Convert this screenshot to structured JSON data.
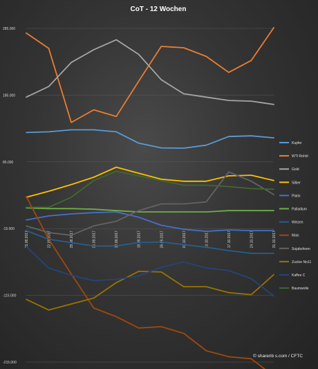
{
  "chart_data": {
    "type": "line",
    "title": "CoT - 12 Wochen",
    "xlabel": "",
    "ylabel": "",
    "ylim": [
      -215000,
      285000
    ],
    "yticks": [
      285000,
      185000,
      85000,
      -15000,
      -115000,
      -215000
    ],
    "ytick_labels": [
      "285.000",
      "185.000",
      "85.000",
      "-15.000",
      "-115.000",
      "-215.000"
    ],
    "categories": [
      "15.08.2017",
      "22.08.2017",
      "29.08.2017",
      "05.09.2017",
      "12.09.2017",
      "19.09.2017",
      "26.09.2017",
      "03.10.2017",
      "10.10.2017",
      "17.10.2017",
      "24.10.2017",
      "31.10.2017"
    ],
    "grid": true,
    "legend": "right",
    "series": [
      {
        "name": "Kupfer",
        "color": "#5b9bd5",
        "values": [
          129000,
          130000,
          133000,
          133000,
          130000,
          113000,
          106000,
          105500,
          110000,
          123000,
          124000,
          121000
        ]
      },
      {
        "name": "WTI Rohöl",
        "color": "#ed7d31",
        "values": [
          278000,
          255000,
          144000,
          163000,
          153000,
          206000,
          258000,
          256000,
          243000,
          219000,
          237000,
          286000
        ]
      },
      {
        "name": "Gold",
        "color": "#a5a5a5",
        "values": [
          182000,
          198000,
          234000,
          253000,
          268000,
          246000,
          208000,
          187000,
          182000,
          177000,
          176000,
          171000
        ]
      },
      {
        "name": "Silber",
        "color": "#ffc000",
        "values": [
          32000,
          41000,
          51000,
          62000,
          77000,
          68000,
          59000,
          56000,
          56000,
          64000,
          65000,
          57000
        ]
      },
      {
        "name": "Platin",
        "color": "#4472c4",
        "values": [
          -2000,
          4000,
          7000,
          9000,
          10000,
          2000,
          -10000,
          -16000,
          -19000,
          -17000,
          -18000,
          -18000
        ]
      },
      {
        "name": "Palladium",
        "color": "#70ad47",
        "values": [
          16000,
          15000,
          15000,
          14000,
          12000,
          10000,
          10000,
          10000,
          10000,
          12000,
          12000,
          12000
        ]
      },
      {
        "name": "Weizen",
        "color": "#255e91",
        "values": [
          -18000,
          -31000,
          -36000,
          -41000,
          -41000,
          -36000,
          -35000,
          -39000,
          -43000,
          -48000,
          -52000,
          -52000
        ]
      },
      {
        "name": "Mais",
        "color": "#9e480e",
        "values": [
          33000,
          -31000,
          -83000,
          -134000,
          -147000,
          -164000,
          -162000,
          -172000,
          -198000,
          -207000,
          -210000,
          -236000
        ]
      },
      {
        "name": "Sojabohnen",
        "color": "#636363",
        "values": [
          -11000,
          -21000,
          -25000,
          -11000,
          -4000,
          12000,
          22000,
          22000,
          25000,
          70000,
          56000,
          36000
        ]
      },
      {
        "name": "Zucker No11",
        "color": "#997300",
        "values": [
          -121000,
          -137000,
          -128000,
          -119000,
          -96000,
          -79000,
          -80000,
          -102000,
          -102000,
          -111000,
          -114000,
          -84000
        ]
      },
      {
        "name": "Kaffee C",
        "color": "#264478",
        "values": [
          -42000,
          -74000,
          -85000,
          -93000,
          -91000,
          -86000,
          -73000,
          -65000,
          -74000,
          -78000,
          -90000,
          -116000
        ]
      },
      {
        "name": "Baumwolle",
        "color": "#43682b",
        "values": [
          17000,
          17000,
          32000,
          57000,
          71000,
          64000,
          57000,
          50000,
          50000,
          48000,
          45000,
          44000
        ]
      }
    ]
  },
  "credit": "© sharerib s.com / CFTC"
}
